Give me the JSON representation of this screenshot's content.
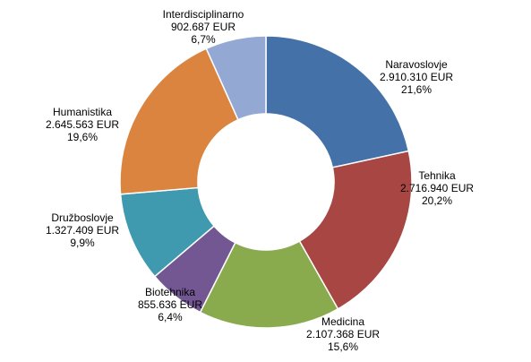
{
  "chart_data": {
    "type": "pie",
    "variant": "donut",
    "title": "",
    "legend": "none",
    "slices": [
      {
        "label": "Naravoslovje",
        "value": 2910310,
        "value_text": "2.910.310 EUR",
        "percent_text": "21,6%",
        "color": "#4472A8"
      },
      {
        "label": "Tehnika",
        "value": 2716940,
        "value_text": "2.716.940 EUR",
        "percent_text": "20,2%",
        "color": "#A84644"
      },
      {
        "label": "Medicina",
        "value": 2107368,
        "value_text": "2.107.368 EUR",
        "percent_text": "15,6%",
        "color": "#8AAA4E"
      },
      {
        "label": "Biotehnika",
        "value": 855636,
        "value_text": "855.636 EUR",
        "percent_text": "6,4%",
        "color": "#735793"
      },
      {
        "label": "Družboslovje",
        "value": 1327409,
        "value_text": "1.327.409 EUR",
        "percent_text": "9,9%",
        "color": "#3F9AAF"
      },
      {
        "label": "Humanistika",
        "value": 2645563,
        "value_text": "2.645.563 EUR",
        "percent_text": "19,6%",
        "color": "#DA8440"
      },
      {
        "label": "Interdisciplinarno",
        "value": 902687,
        "value_text": "902.687 EUR",
        "percent_text": "6,7%",
        "color": "#93A9D4"
      }
    ]
  }
}
